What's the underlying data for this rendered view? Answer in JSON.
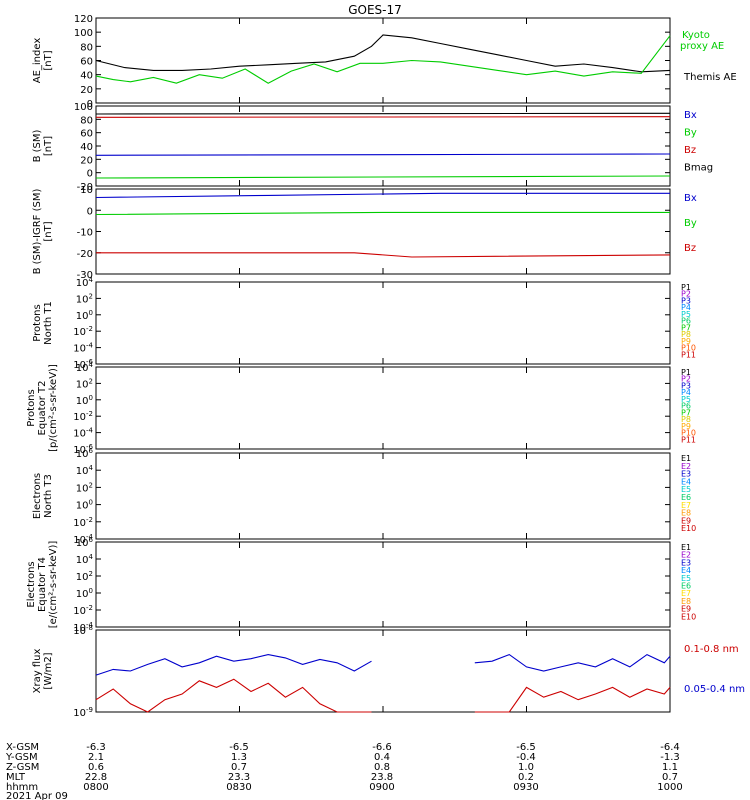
{
  "title": "GOES-17",
  "colors": {
    "black": "#000000",
    "green": "#00cc00",
    "blue": "#0000cc",
    "red": "#cc0000",
    "P": [
      "#000000",
      "#9900cc",
      "#0000cc",
      "#0088ff",
      "#00cccc",
      "#00cc66",
      "#00cc00",
      "#ddcc00",
      "#ffaa00",
      "#ff5500",
      "#cc0000"
    ],
    "E": [
      "#000000",
      "#9900cc",
      "#0000cc",
      "#0088ff",
      "#00cccc",
      "#00cc66",
      "#ffdd00",
      "#ff9900",
      "#cc0000",
      "#cc0000"
    ]
  },
  "chart_data": [
    {
      "type": "line",
      "panel": "ae",
      "ylabel": "AE_index\n[nT]",
      "ylim": [
        0,
        120
      ],
      "yticks": [
        "0",
        "20",
        "40",
        "60",
        "80",
        "100",
        "120"
      ],
      "series": [
        {
          "name": "Themis AE",
          "color": "black",
          "x": [
            0,
            5,
            10,
            15,
            20,
            25,
            30,
            35,
            40,
            45,
            48,
            50,
            55,
            60,
            65,
            70,
            75,
            80,
            85,
            90,
            95,
            100
          ],
          "values": [
            60,
            50,
            46,
            46,
            48,
            52,
            54,
            56,
            58,
            66,
            80,
            96,
            92,
            84,
            76,
            68,
            60,
            52,
            55,
            50,
            44,
            46
          ]
        },
        {
          "name": "Kyoto proxy AE",
          "color": "green",
          "x": [
            0,
            3,
            6,
            10,
            14,
            18,
            22,
            26,
            30,
            34,
            38,
            42,
            46,
            50,
            55,
            60,
            65,
            70,
            75,
            80,
            85,
            90,
            95,
            100
          ],
          "values": [
            38,
            33,
            30,
            36,
            28,
            40,
            35,
            48,
            28,
            45,
            55,
            44,
            56,
            56,
            60,
            58,
            52,
            46,
            40,
            45,
            38,
            44,
            42,
            95
          ]
        }
      ],
      "legend": [
        "Kyoto",
        "proxy AE",
        "Themis AE"
      ]
    },
    {
      "type": "line",
      "panel": "bsm",
      "ylabel": "B (SM)\n[nT]",
      "ylim": [
        -20,
        100
      ],
      "yticks": [
        "-20",
        "0",
        "20",
        "40",
        "60",
        "80",
        "100"
      ],
      "series": [
        {
          "name": "Bx",
          "color": "blue",
          "x": [
            0,
            100
          ],
          "values": [
            26,
            28
          ]
        },
        {
          "name": "By",
          "color": "green",
          "x": [
            0,
            100
          ],
          "values": [
            -8,
            -5
          ]
        },
        {
          "name": "Bz",
          "color": "red",
          "x": [
            0,
            100
          ],
          "values": [
            83,
            84
          ]
        },
        {
          "name": "Bmag",
          "color": "black",
          "x": [
            0,
            100
          ],
          "values": [
            88,
            89
          ]
        }
      ],
      "legend": [
        "Bx",
        "By",
        "Bz",
        "Bmag"
      ]
    },
    {
      "type": "line",
      "panel": "bigrf",
      "ylabel": "B (SM)-IGRF (SM)\n[nT]",
      "ylim": [
        -30,
        10
      ],
      "yticks": [
        "-30",
        "-20",
        "-10",
        "0",
        "10"
      ],
      "series": [
        {
          "name": "Bx",
          "color": "blue",
          "x": [
            0,
            30,
            60,
            100
          ],
          "values": [
            6,
            7,
            8,
            8
          ]
        },
        {
          "name": "By",
          "color": "green",
          "x": [
            0,
            50,
            100
          ],
          "values": [
            -2,
            -1,
            -1
          ]
        },
        {
          "name": "Bz",
          "color": "red",
          "x": [
            0,
            30,
            45,
            55,
            100
          ],
          "values": [
            -20,
            -20,
            -20,
            -22,
            -21
          ]
        }
      ],
      "legend": [
        "Bx",
        "By",
        "Bz"
      ]
    },
    {
      "type": "line",
      "panel": "protons_t1",
      "log": true,
      "ylabel": "Protons\nNorth T1",
      "ylim": [
        -6,
        4
      ],
      "yticks": [
        "10^-6",
        "10^-4",
        "10^-2",
        "10^0",
        "10^2",
        "10^4"
      ],
      "series_levels": [
        3.2,
        2.4,
        1.8,
        1.2,
        0.6,
        0.1,
        -0.6,
        -1.4,
        -3.4,
        -6,
        -6
      ],
      "legend": [
        "P1",
        "P2",
        "P3",
        "P4",
        "P5",
        "P6",
        "P7",
        "P8",
        "P9",
        "P10",
        "P11"
      ]
    },
    {
      "type": "line",
      "panel": "protons_t2",
      "log": true,
      "ylabel": "Protons\nEquator T2\n[p/(cm²-s-sr-keV)]",
      "ylim": [
        -6,
        4
      ],
      "yticks": [
        "10^-6",
        "10^-4",
        "10^-2",
        "10^0",
        "10^2",
        "10^4"
      ],
      "series_levels": [
        3.3,
        2.5,
        1.7,
        0.8,
        -0.2,
        -0.9,
        -1.6,
        -3.5,
        -6,
        -6,
        -6
      ],
      "legend": [
        "P1",
        "P2",
        "P3",
        "P4",
        "P5",
        "P6",
        "P7",
        "P8",
        "P9",
        "P10",
        "P11"
      ]
    },
    {
      "type": "line",
      "panel": "electrons_t3",
      "log": true,
      "ylabel": "Electrons\nNorth T3",
      "ylim": [
        -4,
        6
      ],
      "yticks": [
        "10^-4",
        "10^-2",
        "10^0",
        "10^2",
        "10^4",
        "10^6"
      ],
      "series_levels": [
        4.6,
        3.9,
        3.2,
        2.5,
        1.9,
        1.3,
        0.6,
        -0.8,
        -2.2,
        -4
      ],
      "legend": [
        "E1",
        "E2",
        "E3",
        "E4",
        "E5",
        "E6",
        "E7",
        "E8",
        "E9",
        "E10"
      ]
    },
    {
      "type": "line",
      "panel": "electrons_t4",
      "log": true,
      "ylabel": "Electrons\nEquator T4\n[e/(cm²-s-sr-keV)]",
      "ylim": [
        -4,
        6
      ],
      "yticks": [
        "10^-4",
        "10^-2",
        "10^0",
        "10^2",
        "10^4",
        "10^6"
      ],
      "series_levels": [
        4.5,
        3.9,
        3.3,
        2.7,
        2.1,
        1.4,
        0.6,
        -1.5,
        -4,
        -4
      ],
      "legend": [
        "E1",
        "E2",
        "E3",
        "E4",
        "E5",
        "E6",
        "E7",
        "E8",
        "E9",
        "E10"
      ]
    },
    {
      "type": "line",
      "panel": "xray",
      "log": true,
      "ylabel": "Xray flux\n[W/m2]",
      "ylim": [
        -9,
        -8
      ],
      "yticks": [
        "10^-9",
        "10^-8"
      ],
      "series": [
        {
          "name": "0.05-0.4 nm",
          "color": "blue",
          "x": [
            0,
            3,
            6,
            9,
            12,
            15,
            18,
            21,
            24,
            27,
            30,
            33,
            36,
            39,
            42,
            45,
            48,
            51,
            54,
            57,
            60,
            63,
            66,
            69,
            72,
            75,
            78,
            81,
            84,
            87,
            90,
            93,
            96,
            99,
            100
          ],
          "values": [
            -8.55,
            -8.48,
            -8.5,
            -8.42,
            -8.35,
            -8.45,
            -8.4,
            -8.32,
            -8.38,
            -8.35,
            -8.3,
            -8.34,
            -8.42,
            -8.36,
            -8.4,
            -8.5,
            -8.38,
            -8.3,
            -8.32,
            -8.3,
            -8.28,
            -8.35,
            -8.4,
            -8.38,
            -8.3,
            -8.45,
            -8.5,
            -8.45,
            -8.4,
            -8.45,
            -8.35,
            -8.45,
            -8.3,
            -8.4,
            -8.32
          ]
        },
        {
          "name": "0.1-0.8 nm",
          "color": "red",
          "x": [
            0,
            3,
            6,
            9,
            12,
            15,
            18,
            21,
            24,
            27,
            30,
            33,
            36,
            39,
            42,
            45,
            48,
            51,
            54,
            57,
            60,
            63,
            66,
            69,
            72,
            75,
            78,
            81,
            84,
            87,
            90,
            93,
            96,
            99,
            100
          ],
          "values": [
            -8.85,
            -8.72,
            -8.9,
            -9.0,
            -8.85,
            -8.78,
            -8.62,
            -8.7,
            -8.6,
            -8.75,
            -8.65,
            -8.82,
            -8.7,
            -8.9,
            -9.0,
            -9.0,
            -9.0,
            -9.0,
            -9.0,
            -9.0,
            -9.0,
            -9.0,
            -9.0,
            -9.0,
            -9.0,
            -8.7,
            -8.82,
            -8.75,
            -8.85,
            -8.78,
            -8.7,
            -8.82,
            -8.72,
            -8.78,
            -8.7
          ]
        }
      ],
      "gap": [
        48,
        65
      ],
      "legend": [
        "0.1-0.8 nm",
        "0.05-0.4 nm"
      ]
    }
  ],
  "ephemeris": {
    "labels": [
      "X-GSM",
      "Y-GSM",
      "Z-GSM",
      "MLT",
      "hhmm",
      "2021 Apr 09"
    ],
    "columns": [
      [
        "-6.3",
        "2.1",
        "0.6",
        "22.8",
        "0800"
      ],
      [
        "-6.5",
        "1.3",
        "0.7",
        "23.3",
        "0830"
      ],
      [
        "-6.6",
        "0.4",
        "0.8",
        "23.8",
        "0900"
      ],
      [
        "-6.5",
        "-0.4",
        "1.0",
        "0.2",
        "0930"
      ],
      [
        "-6.4",
        "-1.3",
        "1.1",
        "0.7",
        "1000"
      ]
    ]
  }
}
